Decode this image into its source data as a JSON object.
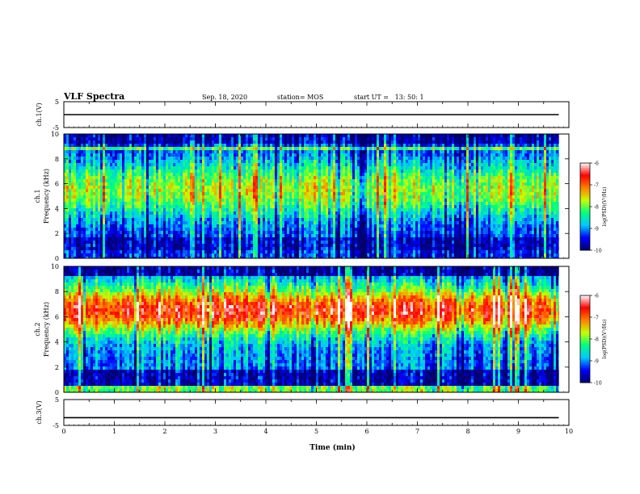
{
  "header": {
    "title": "VLF Spectra",
    "date": "Sep. 18, 2020",
    "station": "station= MOS",
    "start_time": "start UT =   13: 50: 1"
  },
  "chart_data": {
    "type": "heatmap",
    "x_axis": {
      "label": "Time (min)",
      "range": [
        0,
        10
      ],
      "ticks": [
        "0",
        "1",
        "2",
        "3",
        "4",
        "5",
        "6",
        "7",
        "8",
        "9",
        "10"
      ]
    },
    "data_end_min": 9.8,
    "panels": [
      {
        "id": "ch1-waveform",
        "ylabel": "ch.1(V)",
        "ylim": [
          -5,
          5
        ],
        "ticks": [
          "5",
          "-5"
        ],
        "trace_level": 0
      },
      {
        "id": "ch1-spectrogram",
        "ylabel_channel": "ch.1",
        "ylabel": "Frequency (kHz)",
        "ylim": [
          0,
          10
        ],
        "ticks": [
          "0",
          "2",
          "4",
          "6",
          "8",
          "10"
        ],
        "colorbar": {
          "label": "log(PSD)(V²/Hz)",
          "range": [
            -10,
            -6
          ],
          "ticks": [
            "-6",
            "-7",
            "-8",
            "-9",
            "-10"
          ]
        },
        "profile": {
          "hf_core_center_khz": 5.5,
          "hf_core_width_khz": 3.2,
          "hf_core_level": -7.8,
          "floor_level": -9.4,
          "dark_band_khz": [
            0.7,
            1.8
          ],
          "dark_top_khz": [
            9.2,
            10.0
          ],
          "bright_band_khz": [
            8.6,
            9.0
          ]
        }
      },
      {
        "id": "ch2-spectrogram",
        "ylabel_channel": "ch.2",
        "ylabel": "Frequency (kHz)",
        "ylim": [
          0,
          10
        ],
        "ticks": [
          "0",
          "2",
          "4",
          "6",
          "8",
          "10"
        ],
        "colorbar": {
          "label": "log(PSD)(V²/Hz)",
          "range": [
            -10,
            -6
          ],
          "ticks": [
            "-6",
            "-7",
            "-8",
            "-9",
            "-10"
          ]
        },
        "profile": {
          "hf_core_center_khz": 6.5,
          "hf_core_width_khz": 2.6,
          "hf_core_level": -6.6,
          "floor_level": -9.0,
          "dark_band_khz": [
            0.6,
            1.8
          ],
          "dark_top_khz": [
            9.3,
            10.0
          ],
          "bright_band_khz": [
            0.0,
            0.5
          ]
        }
      },
      {
        "id": "ch3-waveform",
        "ylabel": "ch.3(V)",
        "ylim": [
          -5,
          5
        ],
        "ticks": [
          "5",
          "-5"
        ],
        "trace_level": -2
      }
    ],
    "colormap": [
      "#000070",
      "#0000ff",
      "#00c8ff",
      "#00ff80",
      "#c8ff00",
      "#ff8000",
      "#ff0000",
      "#ffffff"
    ]
  }
}
